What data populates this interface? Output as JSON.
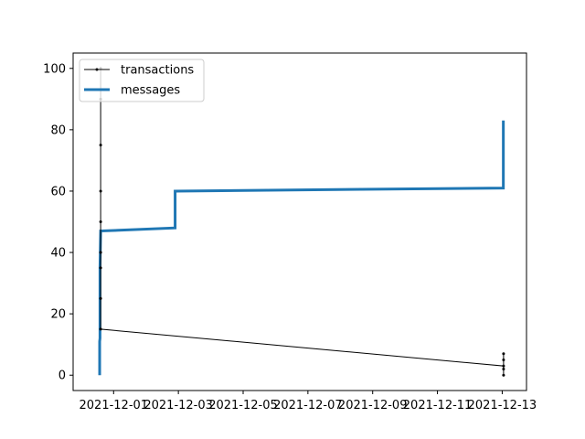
{
  "chart_data": {
    "type": "line",
    "title": "",
    "xlabel": "",
    "ylabel": "",
    "x_type": "date",
    "xlim": [
      "2021-11-29T18:00",
      "2021-12-13T18:00"
    ],
    "ylim": [
      -5,
      105
    ],
    "x_ticks": [
      {
        "value": "2021-12-01",
        "label": "2021-12-01"
      },
      {
        "value": "2021-12-03",
        "label": "2021-12-03"
      },
      {
        "value": "2021-12-05",
        "label": "2021-12-05"
      },
      {
        "value": "2021-12-07",
        "label": "2021-12-07"
      },
      {
        "value": "2021-12-09",
        "label": "2021-12-09"
      },
      {
        "value": "2021-12-11",
        "label": "2021-12-11"
      },
      {
        "value": "2021-12-13",
        "label": "2021-12-13"
      }
    ],
    "y_ticks": [
      0,
      20,
      40,
      60,
      80,
      100
    ],
    "grid": false,
    "legend": {
      "placement": "upper-left"
    },
    "series": [
      {
        "name": "transactions",
        "color": "#000000",
        "marker": "dot",
        "points": [
          {
            "x": "2021-11-30T14:24",
            "y": 100
          },
          {
            "x": "2021-11-30T14:24",
            "y": 90
          },
          {
            "x": "2021-11-30T14:24",
            "y": 75
          },
          {
            "x": "2021-11-30T14:24",
            "y": 60
          },
          {
            "x": "2021-11-30T14:24",
            "y": 50
          },
          {
            "x": "2021-11-30T14:24",
            "y": 40
          },
          {
            "x": "2021-11-30T14:24",
            "y": 25
          },
          {
            "x": "2021-11-30T14:24",
            "y": 35
          },
          {
            "x": "2021-11-30T14:24",
            "y": 15
          },
          {
            "x": "2021-12-13T01:00",
            "y": 3
          },
          {
            "x": "2021-12-13T01:00",
            "y": 7
          },
          {
            "x": "2021-12-13T01:00",
            "y": 5
          },
          {
            "x": "2021-12-13T01:00",
            "y": 2
          },
          {
            "x": "2021-12-13T01:00",
            "y": 0
          }
        ]
      },
      {
        "name": "messages",
        "color": "#1f77b4",
        "marker": "none",
        "points": [
          {
            "x": "2021-11-30T13:40",
            "y": 0
          },
          {
            "x": "2021-11-30T13:40",
            "y": 11
          },
          {
            "x": "2021-11-30T13:55",
            "y": 12
          },
          {
            "x": "2021-11-30T13:55",
            "y": 35
          },
          {
            "x": "2021-11-30T14:24",
            "y": 47
          },
          {
            "x": "2021-12-02T21:35",
            "y": 48
          },
          {
            "x": "2021-12-02T21:35",
            "y": 60
          },
          {
            "x": "2021-12-13T00:50",
            "y": 61
          },
          {
            "x": "2021-12-13T00:50",
            "y": 83
          }
        ]
      }
    ]
  }
}
